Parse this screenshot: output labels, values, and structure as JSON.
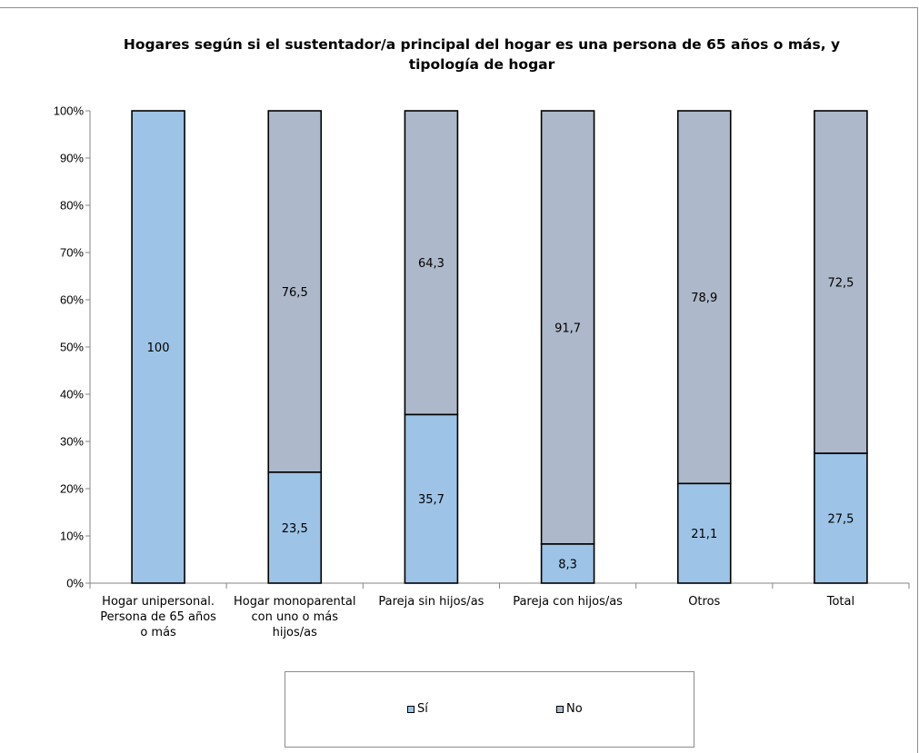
{
  "chart_data": {
    "type": "bar",
    "stacked": true,
    "percent_stacked": true,
    "title": "Hogares según si el sustentador/a principal del hogar es una persona de 65 años o más, y tipología de hogar",
    "categories": [
      [
        "Hogar unipersonal.",
        "Persona de 65 años",
        "o más"
      ],
      [
        "Hogar monoparental",
        "con uno o más",
        "hijos/as"
      ],
      [
        "Pareja sin hijos/as"
      ],
      [
        "Pareja con hijos/as"
      ],
      [
        "Otros"
      ],
      [
        "Total"
      ]
    ],
    "series": [
      {
        "name": "Sí",
        "color": "#9dc3e6",
        "values": [
          100,
          23.5,
          35.7,
          8.3,
          21.1,
          27.5
        ],
        "labels": [
          "100",
          "23,5",
          "35,7",
          "8,3",
          "21,1",
          "27,5"
        ]
      },
      {
        "name": "No",
        "color": "#adb9ca",
        "values": [
          0,
          76.5,
          64.3,
          91.7,
          78.9,
          72.5
        ],
        "labels": [
          "",
          "76,5",
          "64,3",
          "91,7",
          "78,9",
          "72,5"
        ]
      }
    ],
    "y_ticks": [
      "0%",
      "10%",
      "20%",
      "30%",
      "40%",
      "50%",
      "60%",
      "70%",
      "80%",
      "90%",
      "100%"
    ],
    "ylim": [
      0,
      100
    ],
    "grid": false,
    "legend_position": "bottom"
  }
}
